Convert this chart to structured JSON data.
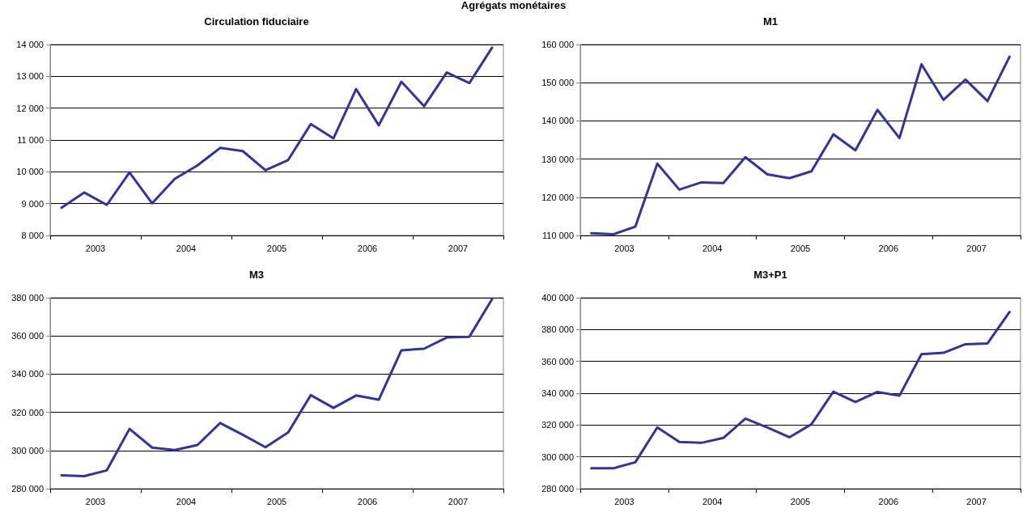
{
  "chart_data": [
    {
      "type": "line",
      "title": "Circulation fiduciaire",
      "annotations": [
        "Agrégats monétaires"
      ],
      "x": [
        2003.125,
        2003.375,
        2003.625,
        2003.875,
        2004.125,
        2004.375,
        2004.625,
        2004.875,
        2005.125,
        2005.375,
        2005.625,
        2005.875,
        2006.125,
        2006.375,
        2006.625,
        2006.875,
        2007.125,
        2007.375,
        2007.625,
        2007.875
      ],
      "series": [
        {
          "color": "#333399",
          "values": [
            8870,
            9350,
            8960,
            9980,
            9010,
            9780,
            10200,
            10750,
            10650,
            10050,
            10370,
            11500,
            11050,
            12600,
            11460,
            12830,
            12060,
            13120,
            12790,
            13900
          ]
        }
      ],
      "xlim": [
        2003,
        2008
      ],
      "xticks": [
        {
          "value": 2003,
          "label": null
        },
        {
          "value": 2003.5,
          "label": "2003"
        },
        {
          "value": 2004,
          "label": null
        },
        {
          "value": 2004.5,
          "label": "2004"
        },
        {
          "value": 2005,
          "label": null
        },
        {
          "value": 2005.5,
          "label": "2005"
        },
        {
          "value": 2006,
          "label": null
        },
        {
          "value": 2006.5,
          "label": "2006"
        },
        {
          "value": 2007,
          "label": null
        },
        {
          "value": 2007.5,
          "label": "2007"
        },
        {
          "value": 2008,
          "label": null
        }
      ],
      "ylim": [
        8000,
        14000
      ],
      "yticks": [
        {
          "value": 8000,
          "label": "8 000"
        },
        {
          "value": 9000,
          "label": "9 000"
        },
        {
          "value": 10000,
          "label": "10 000"
        },
        {
          "value": 11000,
          "label": "11 000"
        },
        {
          "value": 12000,
          "label": "12 000"
        },
        {
          "value": 13000,
          "label": "13 000"
        },
        {
          "value": 14000,
          "label": "14 000"
        }
      ],
      "grid": "y",
      "marker": "none",
      "line_style": "solid"
    },
    {
      "type": "line",
      "title": "M1",
      "x": [
        2003.125,
        2003.375,
        2003.625,
        2003.875,
        2004.125,
        2004.375,
        2004.625,
        2004.875,
        2005.125,
        2005.375,
        2005.625,
        2005.875,
        2006.125,
        2006.375,
        2006.625,
        2006.875,
        2007.125,
        2007.375,
        2007.625,
        2007.875
      ],
      "series": [
        {
          "color": "#333399",
          "values": [
            110600,
            110300,
            112300,
            128800,
            122000,
            123900,
            123700,
            130500,
            126000,
            125000,
            126800,
            136500,
            132300,
            142900,
            135500,
            154800,
            145500,
            150800,
            145200,
            156800
          ]
        }
      ],
      "xlim": [
        2003,
        2008
      ],
      "xticks": [
        {
          "value": 2003,
          "label": null
        },
        {
          "value": 2003.5,
          "label": "2003"
        },
        {
          "value": 2004,
          "label": null
        },
        {
          "value": 2004.5,
          "label": "2004"
        },
        {
          "value": 2005,
          "label": null
        },
        {
          "value": 2005.5,
          "label": "2005"
        },
        {
          "value": 2006,
          "label": null
        },
        {
          "value": 2006.5,
          "label": "2006"
        },
        {
          "value": 2007,
          "label": null
        },
        {
          "value": 2007.5,
          "label": "2007"
        },
        {
          "value": 2008,
          "label": null
        }
      ],
      "ylim": [
        110000,
        160000
      ],
      "yticks": [
        {
          "value": 110000,
          "label": "110 000"
        },
        {
          "value": 120000,
          "label": "120 000"
        },
        {
          "value": 130000,
          "label": "130 000"
        },
        {
          "value": 140000,
          "label": "140 000"
        },
        {
          "value": 150000,
          "label": "150 000"
        },
        {
          "value": 160000,
          "label": "160 000"
        }
      ],
      "grid": "y",
      "marker": "none",
      "line_style": "solid"
    },
    {
      "type": "line",
      "title": "M3",
      "x": [
        2003.125,
        2003.375,
        2003.625,
        2003.875,
        2004.125,
        2004.375,
        2004.625,
        2004.875,
        2005.125,
        2005.375,
        2005.625,
        2005.875,
        2006.125,
        2006.375,
        2006.625,
        2006.875,
        2007.125,
        2007.375,
        2007.625,
        2007.875
      ],
      "series": [
        {
          "color": "#333399",
          "values": [
            287000,
            286600,
            289600,
            311300,
            301500,
            300200,
            302900,
            314400,
            308200,
            301700,
            309400,
            329000,
            322300,
            328800,
            326600,
            352500,
            353300,
            359200,
            359600,
            379300
          ]
        }
      ],
      "xlim": [
        2003,
        2008
      ],
      "xticks": [
        {
          "value": 2003,
          "label": null
        },
        {
          "value": 2003.5,
          "label": "2003"
        },
        {
          "value": 2004,
          "label": null
        },
        {
          "value": 2004.5,
          "label": "2004"
        },
        {
          "value": 2005,
          "label": null
        },
        {
          "value": 2005.5,
          "label": "2005"
        },
        {
          "value": 2006,
          "label": null
        },
        {
          "value": 2006.5,
          "label": "2006"
        },
        {
          "value": 2007,
          "label": null
        },
        {
          "value": 2007.5,
          "label": "2007"
        },
        {
          "value": 2008,
          "label": null
        }
      ],
      "ylim": [
        280000,
        380000
      ],
      "yticks": [
        {
          "value": 280000,
          "label": "280 000"
        },
        {
          "value": 300000,
          "label": "300 000"
        },
        {
          "value": 320000,
          "label": "320 000"
        },
        {
          "value": 340000,
          "label": "340 000"
        },
        {
          "value": 360000,
          "label": "360 000"
        },
        {
          "value": 380000,
          "label": "380 000"
        }
      ],
      "grid": "y",
      "marker": "none",
      "line_style": "solid"
    },
    {
      "type": "line",
      "title": "M3+P1",
      "x": [
        2003.125,
        2003.375,
        2003.625,
        2003.875,
        2004.125,
        2004.375,
        2004.625,
        2004.875,
        2005.125,
        2005.375,
        2005.625,
        2005.875,
        2006.125,
        2006.375,
        2006.625,
        2006.875,
        2007.125,
        2007.375,
        2007.625,
        2007.875
      ],
      "series": [
        {
          "color": "#333399",
          "values": [
            292800,
            292800,
            296600,
            318500,
            309400,
            308800,
            311900,
            324000,
            318400,
            312300,
            320500,
            341000,
            334500,
            340800,
            338400,
            364500,
            365400,
            370800,
            371300,
            391000
          ]
        }
      ],
      "xlim": [
        2003,
        2008
      ],
      "xticks": [
        {
          "value": 2003,
          "label": null
        },
        {
          "value": 2003.5,
          "label": "2003"
        },
        {
          "value": 2004,
          "label": null
        },
        {
          "value": 2004.5,
          "label": "2004"
        },
        {
          "value": 2005,
          "label": null
        },
        {
          "value": 2005.5,
          "label": "2005"
        },
        {
          "value": 2006,
          "label": null
        },
        {
          "value": 2006.5,
          "label": "2006"
        },
        {
          "value": 2007,
          "label": null
        },
        {
          "value": 2007.5,
          "label": "2007"
        },
        {
          "value": 2008,
          "label": null
        }
      ],
      "ylim": [
        280000,
        400000
      ],
      "yticks": [
        {
          "value": 280000,
          "label": "280 000"
        },
        {
          "value": 300000,
          "label": "300 000"
        },
        {
          "value": 320000,
          "label": "320 000"
        },
        {
          "value": 340000,
          "label": "340 000"
        },
        {
          "value": 360000,
          "label": "360 000"
        },
        {
          "value": 380000,
          "label": "380 000"
        },
        {
          "value": 400000,
          "label": "400 000"
        }
      ],
      "grid": "y",
      "marker": "none",
      "line_style": "solid"
    }
  ]
}
